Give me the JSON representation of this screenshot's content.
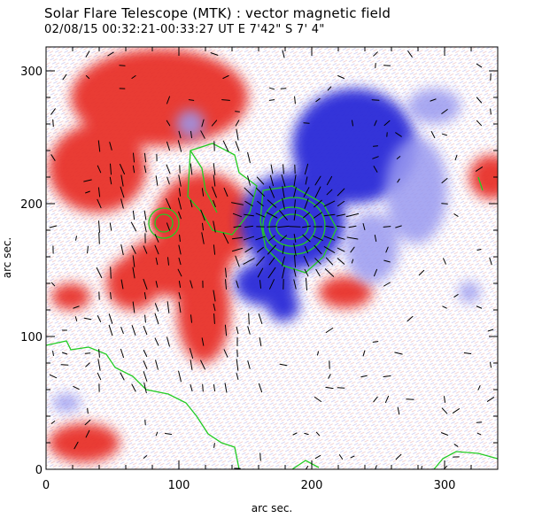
{
  "header": {
    "title": "Solar Flare Telescope (MTK) : vector magnetic field",
    "subtitle": "02/08/15   00:32:21-00:33:27 UT     E 7'42\"   S 7' 4\""
  },
  "chart_data": {
    "type": "heatmap",
    "xlabel": "arc sec.",
    "ylabel": "arc sec.",
    "xlim": [
      0,
      340
    ],
    "ylim": [
      0,
      318
    ],
    "xticks": [
      0,
      100,
      200,
      300
    ],
    "yticks": [
      0,
      100,
      200,
      300
    ],
    "colors": {
      "positive": "#e8332b",
      "negative": "#2b2bd8",
      "contour": "#22cc22",
      "vectors": "#000000",
      "background": "#ffffff"
    }
  }
}
